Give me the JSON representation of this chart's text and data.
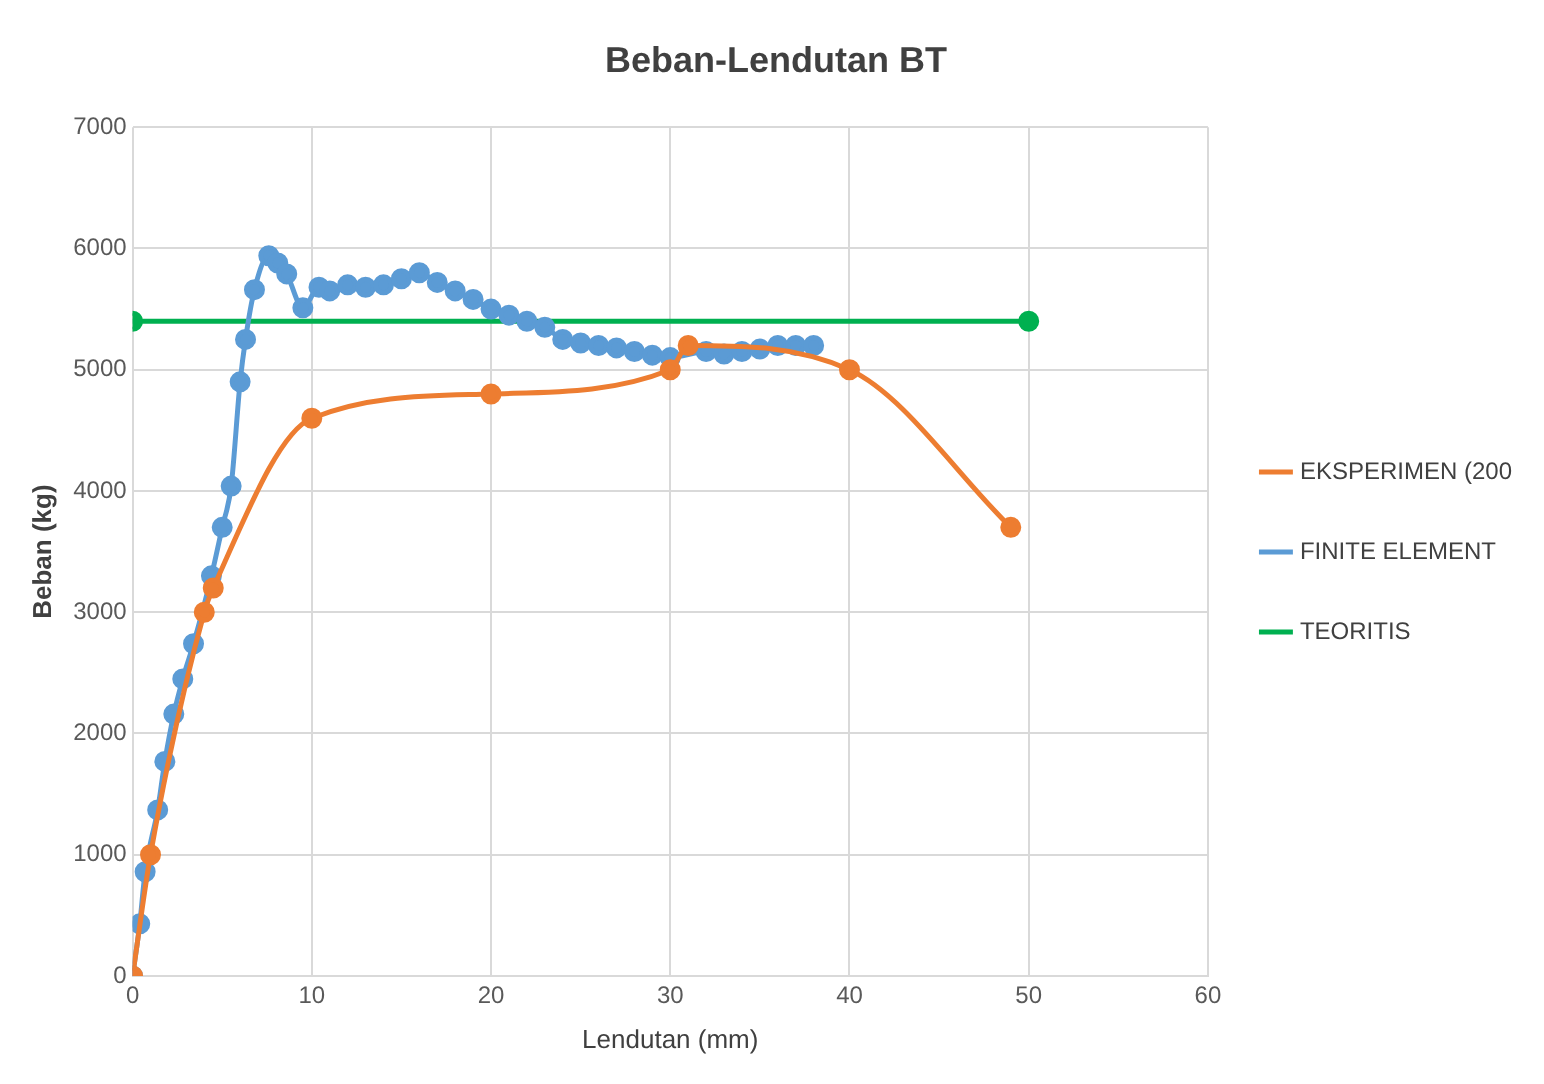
{
  "chart_data": {
    "type": "line",
    "title": "Beban-Lendutan BT",
    "xlabel": "Lendutan (mm)",
    "ylabel": "Beban (kg)",
    "xlim": [
      0,
      60
    ],
    "xticks": [
      0,
      10,
      20,
      30,
      40,
      50,
      60
    ],
    "ylim": [
      0,
      7000
    ],
    "yticks": [
      0,
      1000,
      2000,
      3000,
      4000,
      5000,
      6000,
      7000
    ],
    "grid": true,
    "legend": "right",
    "marker": "circle",
    "line_style": "solid",
    "series": [
      {
        "name": "EKSPERIMEN (200",
        "color": "#ed7d31",
        "x": [
          0,
          1,
          4,
          4.5,
          10,
          20,
          30,
          31,
          40,
          49
        ],
        "values": [
          0,
          1000,
          3000,
          3200,
          4600,
          4800,
          5000,
          5200,
          5000,
          3700
        ]
      },
      {
        "name": "FINITE ELEMENT",
        "color": "#5b9bd5",
        "x": [
          0,
          0.4,
          0.7,
          1.4,
          1.8,
          2.3,
          2.8,
          3.4,
          4.4,
          5,
          5.5,
          6,
          6.3,
          6.8,
          7.6,
          8.1,
          8.6,
          9.5,
          10.4,
          11,
          12,
          13,
          14,
          15,
          16,
          17,
          18,
          19,
          20,
          21,
          22,
          23,
          24,
          25,
          26,
          27,
          28,
          29,
          30,
          32,
          33,
          34,
          35,
          36,
          37,
          38
        ],
        "values": [
          0,
          430,
          860,
          1370,
          1770,
          2160,
          2450,
          2740,
          3300,
          3700,
          4040,
          4900,
          5250,
          5660,
          5940,
          5880,
          5790,
          5510,
          5680,
          5650,
          5700,
          5680,
          5700,
          5750,
          5800,
          5720,
          5650,
          5580,
          5500,
          5450,
          5400,
          5350,
          5250,
          5220,
          5200,
          5180,
          5150,
          5120,
          5100,
          5150,
          5130,
          5150,
          5170,
          5200,
          5200,
          5200
        ]
      },
      {
        "name": "TEORITIS",
        "color": "#00b050",
        "x": [
          0,
          50
        ],
        "values": [
          5400,
          5400
        ]
      }
    ]
  }
}
